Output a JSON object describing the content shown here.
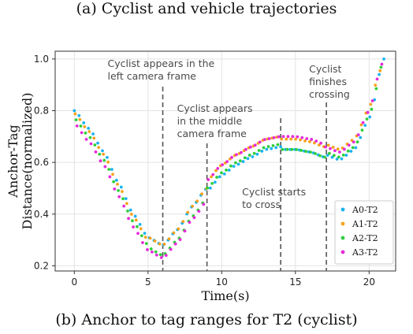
{
  "captions": {
    "top": "(a) Cyclist and vehicle trajectories",
    "bottom": "(b) Anchor to tag ranges for T2 (cyclist)"
  },
  "chart_data": {
    "type": "scatter",
    "xlabel": "Time(s)",
    "ylabel": "Anchor-Tag Distance(normalized)",
    "xlim": [
      -1.3,
      21.8
    ],
    "ylim": [
      0.18,
      1.03
    ],
    "xticks": [
      0,
      5,
      10,
      15,
      20
    ],
    "yticks": [
      0.2,
      0.4,
      0.6,
      0.8,
      1.0
    ],
    "grid": true,
    "legend_position": "bottom-right",
    "annotations": [
      {
        "x": 6.0,
        "lines": [
          "Cyclist appears in the",
          "left camera frame"
        ]
      },
      {
        "x": 9.0,
        "lines": [
          "Cyclist appears",
          "in the middle",
          "camera frame"
        ]
      },
      {
        "x": 14.0,
        "lines": [
          "Cyclist starts",
          "to cross"
        ]
      },
      {
        "x": 17.1,
        "lines": [
          "Cyclist",
          "finishes",
          "crossing"
        ]
      }
    ],
    "series": [
      {
        "name": "A0-T2",
        "color": "#1ab3f0",
        "offset": 0.0
      },
      {
        "name": "A1-T2",
        "color": "#f5a21a",
        "offset": 0.02
      },
      {
        "name": "A2-T2",
        "color": "#2fcf3a",
        "offset": -0.025
      },
      {
        "name": "A3-T2",
        "color": "#e62ad9",
        "offset": 0.0
      }
    ],
    "base_curve": [
      [
        0,
        0.8
      ],
      [
        1,
        0.73
      ],
      [
        2,
        0.64
      ],
      [
        3,
        0.52
      ],
      [
        4,
        0.4
      ],
      [
        5,
        0.31
      ],
      [
        6,
        0.28
      ],
      [
        7,
        0.34
      ],
      [
        8,
        0.43
      ],
      [
        9,
        0.5
      ],
      [
        10,
        0.56
      ],
      [
        11,
        0.6
      ],
      [
        12,
        0.63
      ],
      [
        13,
        0.66
      ],
      [
        14,
        0.67
      ],
      [
        15,
        0.67
      ],
      [
        16,
        0.66
      ],
      [
        17,
        0.64
      ],
      [
        18,
        0.62
      ],
      [
        19,
        0.66
      ],
      [
        20,
        0.78
      ],
      [
        21,
        1.0
      ]
    ],
    "segment_offsets": [
      {
        "x0": 0,
        "x1": 5,
        "series": [
          0.0,
          -0.01,
          -0.03,
          -0.05
        ]
      },
      {
        "x0": 5,
        "x1": 9,
        "series": [
          0.0,
          0.0,
          -0.04,
          -0.05
        ]
      },
      {
        "x0": 9,
        "x1": 14,
        "series": [
          -0.01,
          0.03,
          0.0,
          0.03
        ]
      },
      {
        "x0": 14,
        "x1": 17,
        "series": [
          -0.02,
          0.02,
          -0.02,
          0.03
        ]
      },
      {
        "x0": 17,
        "x1": 21,
        "series": [
          -0.01,
          0.03,
          0.0,
          0.02
        ]
      }
    ]
  }
}
